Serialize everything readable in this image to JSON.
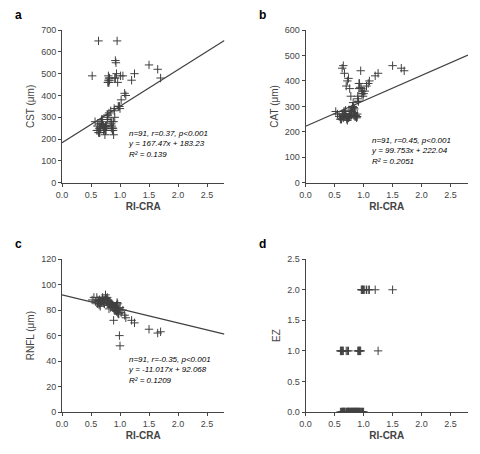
{
  "chart_data": [
    {
      "type": "scatter",
      "title": "a",
      "xlabel": "RI-CRA",
      "ylabel": "CST (μm)",
      "xlim": [
        0,
        2.8
      ],
      "xticks": [
        {
          "value": 0,
          "label": "0.0"
        },
        0.5,
        {
          "value": 1.0,
          "label": "1.0"
        },
        1.5,
        {
          "value": 2.0,
          "label": "2.0"
        },
        2.5
      ],
      "ylim": [
        0,
        700
      ],
      "yticks": [
        0,
        100,
        200,
        300,
        400,
        500,
        600,
        700
      ],
      "grid": false,
      "series": [
        {
          "type": "scatter",
          "color": "#404040",
          "marker": "+",
          "x": [
            0.52,
            0.57,
            0.6,
            0.61,
            0.62,
            0.63,
            0.64,
            0.65,
            0.66,
            0.67,
            0.68,
            0.7,
            0.71,
            0.72,
            0.73,
            0.74,
            0.75,
            0.76,
            0.77,
            0.78,
            0.79,
            0.8,
            0.81,
            0.82,
            0.83,
            0.84,
            0.85,
            0.86,
            0.87,
            0.88,
            0.89,
            0.9,
            0.91,
            0.92,
            0.93,
            0.94,
            0.95,
            0.96,
            0.97,
            0.98,
            0.99,
            1.0,
            1.01,
            0.79,
            0.8,
            0.81,
            0.82,
            0.75,
            0.76,
            0.63,
            0.64,
            0.65,
            0.67,
            0.68,
            0.7,
            0.71,
            0.72,
            0.73,
            0.74,
            0.75,
            0.85,
            0.86,
            0.87,
            0.88,
            0.89,
            0.9,
            0.91,
            0.92,
            1.02,
            1.05,
            1.08,
            1.1,
            1.2,
            1.25,
            1.5,
            1.65,
            1.7,
            0.78,
            0.79,
            0.8,
            0.81
          ],
          "values": [
            490,
            280,
            240,
            260,
            240,
            230,
            250,
            230,
            250,
            270,
            280,
            270,
            260,
            240,
            250,
            250,
            240,
            240,
            260,
            300,
            460,
            470,
            480,
            470,
            280,
            330,
            250,
            260,
            250,
            240,
            220,
            330,
            300,
            480,
            550,
            500,
            650,
            460,
            350,
            350,
            350,
            340,
            490,
            290,
            490,
            460,
            480,
            260,
            260,
            650,
            270,
            230,
            250,
            290,
            290,
            260,
            240,
            250,
            220,
            260,
            270,
            280,
            240,
            250,
            280,
            340,
            480,
            560,
            380,
            490,
            410,
            400,
            470,
            500,
            540,
            520,
            480,
            310,
            310,
            460,
            320
          ]
        },
        {
          "type": "line",
          "color": "#404040",
          "line_style": "solid",
          "x": [
            0.0,
            2.8
          ],
          "values": [
            183.23,
            652.146
          ]
        }
      ],
      "annotations": [
        {
          "text": "n=91, r=0.37, p<0.001\ny = 167.47x + 183.23\nR² = 0.139",
          "x": 1.1,
          "y": 100
        }
      ]
    },
    {
      "type": "scatter",
      "title": "b",
      "xlabel": "RI-CRA",
      "ylabel": "CAT (μm)",
      "xlim": [
        0,
        2.8
      ],
      "xticks": [
        {
          "value": 0,
          "label": "0.0"
        },
        0.5,
        {
          "value": 1.0,
          "label": "1.0"
        },
        1.5,
        {
          "value": 2.0,
          "label": "2.0"
        },
        2.5
      ],
      "ylim": [
        0,
        600
      ],
      "yticks": [
        0,
        100,
        200,
        300,
        400,
        500,
        600
      ],
      "grid": false,
      "series": [
        {
          "type": "scatter",
          "color": "#404040",
          "marker": "+",
          "x": [
            0.52,
            0.55,
            0.58,
            0.6,
            0.62,
            0.63,
            0.64,
            0.65,
            0.66,
            0.67,
            0.68,
            0.7,
            0.71,
            0.72,
            0.73,
            0.74,
            0.75,
            0.76,
            0.77,
            0.78,
            0.79,
            0.8,
            0.81,
            0.82,
            0.83,
            0.84,
            0.85,
            0.86,
            0.87,
            0.88,
            0.89,
            0.9,
            0.91,
            0.92,
            0.93,
            0.94,
            0.95,
            0.96,
            0.97,
            0.98,
            0.99,
            1.0,
            1.02,
            1.05,
            1.08,
            1.1,
            1.2,
            1.25,
            1.5,
            1.65,
            0.63,
            0.65,
            0.67,
            0.7,
            0.72,
            0.74,
            0.76,
            0.78,
            0.8,
            0.82,
            0.84,
            0.86,
            0.88,
            0.9,
            0.92,
            0.61,
            0.64,
            0.66,
            0.69,
            0.71,
            0.73,
            0.75,
            0.77,
            0.79,
            0.81,
            0.83,
            0.85,
            0.87,
            0.89,
            0.91,
            1.7
          ],
          "values": [
            280,
            270,
            260,
            250,
            250,
            270,
            260,
            255,
            265,
            270,
            280,
            260,
            250,
            245,
            255,
            255,
            258,
            260,
            270,
            280,
            280,
            285,
            300,
            315,
            265,
            290,
            260,
            265,
            260,
            260,
            270,
            340,
            320,
            370,
            390,
            375,
            440,
            370,
            350,
            360,
            340,
            350,
            360,
            380,
            390,
            400,
            420,
            430,
            460,
            450,
            450,
            460,
            430,
            380,
            400,
            410,
            370,
            340,
            290,
            295,
            275,
            265,
            255,
            330,
            390,
            250,
            265,
            280,
            285,
            258,
            258,
            265,
            270,
            265,
            300,
            295,
            265,
            260,
            260,
            320,
            440
          ]
        },
        {
          "type": "line",
          "color": "#404040",
          "line_style": "solid",
          "x": [
            0.0,
            2.8
          ],
          "values": [
            222.04,
            501.3484
          ]
        }
      ],
      "annotations": [
        {
          "text": "n=91, r=0.45, p<0.001\ny = 99.753x + 222.04\nR² = 0.2051",
          "x": 1.1,
          "y": 60
        }
      ]
    },
    {
      "type": "scatter",
      "title": "c",
      "xlabel": "RI-CRA",
      "ylabel": "RNFL (μm)",
      "xlim": [
        0,
        2.8
      ],
      "xticks": [
        {
          "value": 0,
          "label": "0.0"
        },
        0.5,
        {
          "value": 1.0,
          "label": "1.0"
        },
        1.5,
        {
          "value": 2.0,
          "label": "2.0"
        },
        2.5
      ],
      "ylim": [
        0,
        120
      ],
      "yticks": [
        0,
        20,
        40,
        60,
        80,
        100,
        120
      ],
      "grid": false,
      "series": [
        {
          "type": "scatter",
          "color": "#404040",
          "marker": "+",
          "x": [
            0.52,
            0.55,
            0.58,
            0.6,
            0.62,
            0.63,
            0.64,
            0.65,
            0.66,
            0.67,
            0.68,
            0.7,
            0.71,
            0.72,
            0.73,
            0.74,
            0.75,
            0.76,
            0.77,
            0.78,
            0.79,
            0.8,
            0.81,
            0.82,
            0.83,
            0.84,
            0.85,
            0.86,
            0.87,
            0.88,
            0.89,
            0.9,
            0.91,
            0.92,
            0.93,
            0.94,
            0.95,
            0.96,
            0.97,
            0.98,
            0.99,
            1.0,
            0.63,
            0.65,
            0.67,
            0.7,
            0.72,
            0.74,
            0.76,
            0.78,
            0.8,
            0.82,
            0.84,
            0.86,
            0.88,
            0.9,
            0.92,
            0.94,
            0.96,
            0.98,
            0.61,
            0.64,
            0.66,
            0.69,
            0.71,
            0.73,
            0.75,
            0.77,
            0.79,
            0.81,
            1.02,
            1.05,
            1.08,
            1.1,
            1.2,
            1.25,
            1.5,
            1.65,
            1.7,
            1.0,
            0.95
          ],
          "values": [
            88,
            90,
            87,
            90,
            88,
            87,
            85,
            88,
            87,
            86,
            87,
            88,
            88,
            87,
            85,
            88,
            90,
            88,
            89,
            90,
            86,
            85,
            86,
            85,
            85,
            82,
            85,
            83,
            84,
            82,
            72,
            80,
            83,
            80,
            80,
            79,
            80,
            78,
            77,
            77,
            60,
            52,
            87,
            88,
            86,
            90,
            87,
            88,
            88,
            87,
            87,
            86,
            84,
            85,
            84,
            82,
            83,
            84,
            85,
            81,
            85,
            84,
            83,
            88,
            87,
            85,
            92,
            87,
            88,
            81,
            78,
            80,
            76,
            74,
            72,
            70,
            65,
            62,
            63,
            82,
            86
          ]
        },
        {
          "type": "line",
          "color": "#404040",
          "line_style": "solid",
          "x": [
            0.0,
            2.8
          ],
          "values": [
            92.068,
            61.2204
          ]
        }
      ],
      "annotations": [
        {
          "text": "n=91, r=-0.35, p<0.001\ny = -11.017x + 92.068\nR² = 0.1209",
          "x": 1.1,
          "y": 20
        }
      ]
    },
    {
      "type": "scatter",
      "title": "d",
      "xlabel": "RI-CRA",
      "ylabel": "EZ",
      "xlim": [
        0,
        2.8
      ],
      "xticks": [
        {
          "value": 0,
          "label": "0.0"
        },
        0.5,
        {
          "value": 1.0,
          "label": "1.0"
        },
        1.5,
        {
          "value": 2.0,
          "label": "2.0"
        },
        2.5
      ],
      "ylim": [
        0,
        2.5
      ],
      "yticks": [
        {
          "value": 0,
          "label": "0.0"
        },
        0.5,
        {
          "value": 1.0,
          "label": "1.0"
        },
        1.5,
        {
          "value": 2.0,
          "label": "2.0"
        },
        2.5
      ],
      "grid": false,
      "series": [
        {
          "type": "scatter",
          "color": "#404040",
          "marker": "+",
          "x": [
            0.6,
            0.62,
            0.63,
            0.64,
            0.65,
            0.66,
            0.67,
            0.68,
            0.7,
            0.71,
            0.72,
            0.73,
            0.74,
            0.75,
            0.76,
            0.77,
            0.78,
            0.79,
            0.8,
            0.81,
            0.82,
            0.83,
            0.84,
            0.85,
            0.86,
            0.87,
            0.88,
            0.89,
            0.9,
            0.91,
            0.92,
            0.93,
            0.94,
            0.95,
            0.96,
            0.97,
            0.98,
            0.99,
            1.0,
            0.63,
            0.65,
            0.67,
            0.7,
            0.72,
            0.74,
            0.76,
            0.78,
            0.8,
            0.82,
            0.84,
            0.86,
            0.88,
            0.9,
            0.92,
            0.6,
            0.61,
            0.62,
            0.63,
            0.64,
            0.65,
            0.9,
            0.91,
            0.92,
            0.93,
            0.94,
            0.95,
            0.96,
            0.97,
            0.98,
            0.99,
            1.0,
            1.02,
            1.05,
            1.08,
            1.1,
            1.2,
            1.25,
            1.5,
            0.7,
            0.72,
            0.74
          ],
          "values": [
            0,
            0,
            0,
            0,
            0,
            0,
            0,
            0,
            0,
            0,
            0,
            0,
            0,
            0,
            0,
            0,
            0,
            0,
            0,
            0,
            0,
            0,
            0,
            0,
            0,
            0,
            0,
            0,
            0,
            0,
            0,
            0,
            0,
            0,
            0,
            0,
            0,
            0,
            0,
            0,
            0,
            0,
            0,
            0,
            0,
            0,
            0,
            0,
            0,
            0,
            0,
            0,
            0,
            0,
            1,
            1,
            1,
            1,
            1,
            1,
            1,
            1,
            1,
            1,
            1,
            1,
            2,
            2,
            2,
            2,
            2,
            2,
            2,
            2,
            2,
            2,
            1,
            2,
            1,
            1,
            1
          ]
        }
      ]
    }
  ]
}
